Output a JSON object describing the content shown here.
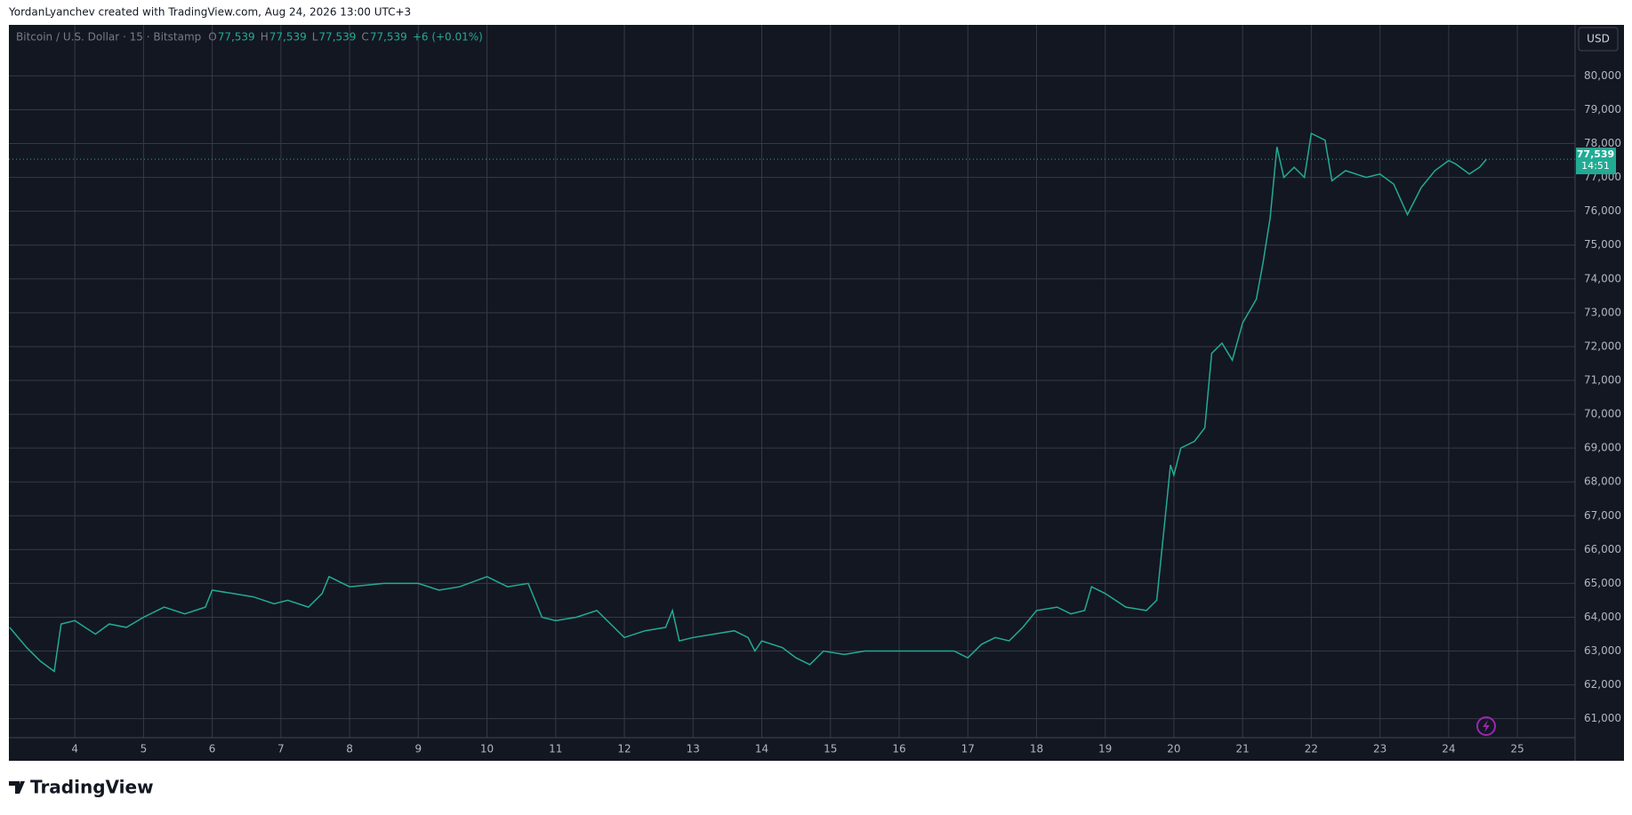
{
  "header": "YordanLyanchev created with TradingView.com, Aug 24, 2026 13:00 UTC+3",
  "footer": "TradingView",
  "chart_data": {
    "type": "line",
    "symbol": "Bitcoin / U.S. Dollar · 15 · Bitstamp",
    "ohlc": [
      {
        "key": "O",
        "value": "77,539"
      },
      {
        "key": "H",
        "value": "77,539"
      },
      {
        "key": "L",
        "value": "77,539"
      },
      {
        "key": "C",
        "value": "77,539"
      }
    ],
    "change": "+6 (+0.01%)",
    "currency": "USD",
    "last_price": {
      "value": 77539,
      "label": "77,539"
    },
    "countdown": "14:51",
    "x": [
      3.05,
      3.3,
      3.5,
      3.7,
      3.8,
      4.0,
      4.3,
      4.5,
      4.75,
      5.0,
      5.3,
      5.6,
      5.9,
      6.0,
      6.3,
      6.6,
      6.9,
      7.1,
      7.4,
      7.6,
      7.7,
      8.0,
      8.5,
      9.0,
      9.3,
      9.6,
      10.0,
      10.3,
      10.6,
      10.8,
      11.0,
      11.3,
      11.6,
      11.8,
      12.0,
      12.3,
      12.6,
      12.7,
      12.8,
      13.0,
      13.3,
      13.6,
      13.8,
      13.9,
      14.0,
      14.3,
      14.5,
      14.7,
      14.9,
      15.2,
      15.5,
      16.0,
      16.5,
      16.8,
      17.0,
      17.2,
      17.4,
      17.6,
      17.8,
      18.0,
      18.3,
      18.5,
      18.7,
      18.8,
      19.0,
      19.3,
      19.6,
      19.75,
      19.85,
      19.95,
      20.0,
      20.1,
      20.3,
      20.45,
      20.55,
      20.7,
      20.85,
      21.0,
      21.2,
      21.3,
      21.4,
      21.5,
      21.6,
      21.75,
      21.9,
      22.0,
      22.2,
      22.3,
      22.5,
      22.8,
      23.0,
      23.2,
      23.4,
      23.6,
      23.8,
      24.0,
      24.1,
      24.3,
      24.45,
      24.55
    ],
    "series": [
      {
        "name": "BTCUSD",
        "color": "#22ab94",
        "values": [
          63700,
          63100,
          62700,
          62400,
          63800,
          63900,
          63500,
          63800,
          63700,
          64000,
          64300,
          64100,
          64300,
          64800,
          64700,
          64600,
          64400,
          64500,
          64300,
          64700,
          65200,
          64900,
          65000,
          65000,
          64800,
          64900,
          65200,
          64900,
          65000,
          64000,
          63900,
          64000,
          64200,
          63800,
          63400,
          63600,
          63700,
          64200,
          63300,
          63400,
          63500,
          63600,
          63400,
          63000,
          63300,
          63100,
          62800,
          62600,
          63000,
          62900,
          63000,
          63000,
          63000,
          63000,
          62800,
          63200,
          63400,
          63300,
          63700,
          64200,
          64300,
          64100,
          64200,
          64900,
          64700,
          64300,
          64200,
          64500,
          66500,
          68500,
          68200,
          69000,
          69200,
          69600,
          71800,
          72100,
          71600,
          72700,
          73400,
          74500,
          75800,
          77900,
          77000,
          77300,
          77000,
          78300,
          78100,
          76900,
          77200,
          77000,
          77100,
          76800,
          75900,
          76700,
          77200,
          77500,
          77400,
          77100,
          77300,
          77539
        ]
      }
    ],
    "xlim": [
      3.04,
      25.84
    ],
    "xticks": [
      4,
      5,
      6,
      7,
      8,
      9,
      10,
      11,
      12,
      13,
      14,
      15,
      16,
      17,
      18,
      19,
      20,
      21,
      22,
      23,
      24,
      25
    ],
    "ylim": [
      60440,
      81508
    ],
    "yticks": [
      {
        "value": 61000,
        "label": "61,000"
      },
      {
        "value": 62000,
        "label": "62,000"
      },
      {
        "value": 63000,
        "label": "63,000"
      },
      {
        "value": 64000,
        "label": "64,000"
      },
      {
        "value": 65000,
        "label": "65,000"
      },
      {
        "value": 66000,
        "label": "66,000"
      },
      {
        "value": 67000,
        "label": "67,000"
      },
      {
        "value": 68000,
        "label": "68,000"
      },
      {
        "value": 69000,
        "label": "69,000"
      },
      {
        "value": 70000,
        "label": "70,000"
      },
      {
        "value": 71000,
        "label": "71,000"
      },
      {
        "value": 72000,
        "label": "72,000"
      },
      {
        "value": 73000,
        "label": "73,000"
      },
      {
        "value": 74000,
        "label": "74,000"
      },
      {
        "value": 75000,
        "label": "75,000"
      },
      {
        "value": 76000,
        "label": "76,000"
      },
      {
        "value": 77000,
        "label": "77,000"
      },
      {
        "value": 78000,
        "label": "78,000"
      },
      {
        "value": 79000,
        "label": "79,000"
      },
      {
        "value": 80000,
        "label": "80,000"
      }
    ],
    "grid": true
  }
}
